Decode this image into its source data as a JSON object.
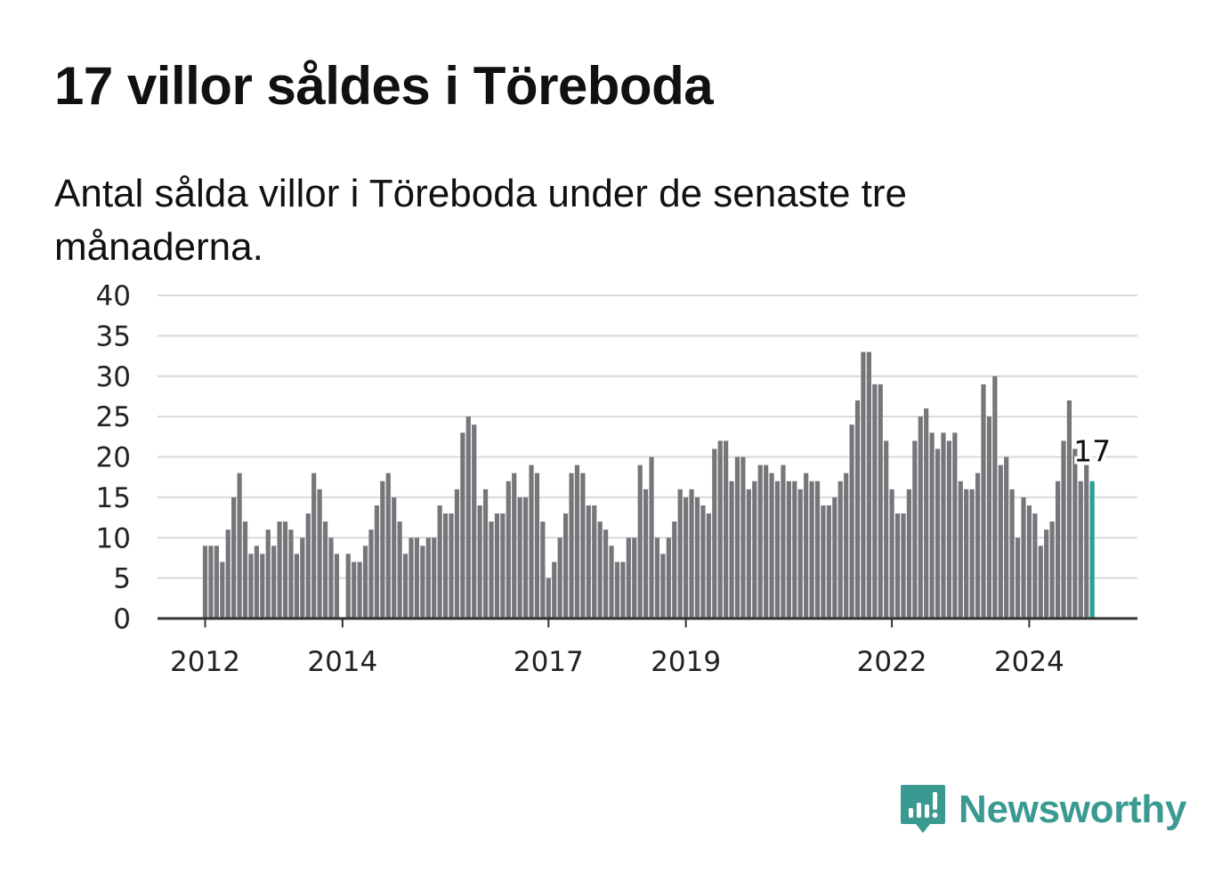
{
  "title": "17 villor såldes i Töreboda",
  "subtitle": "Antal sålda villor i Töreboda under de senaste tre månaderna.",
  "brand": {
    "name": "Newsworthy",
    "icon": "newsworthy-logo-icon",
    "color": "#3a9a91"
  },
  "colors": {
    "bar": "#76757a",
    "highlight": "#2a9d95",
    "grid": "#d9d9d9",
    "axis": "#333333"
  },
  "chart_data": {
    "type": "bar",
    "title": "17 villor såldes i Töreboda",
    "ylim": [
      0,
      40
    ],
    "yticks": [
      0,
      5,
      10,
      15,
      20,
      25,
      30,
      35,
      40
    ],
    "grid": true,
    "xticks": [
      {
        "label": "2012",
        "index": 0
      },
      {
        "label": "2014",
        "index": 24
      },
      {
        "label": "2017",
        "index": 60
      },
      {
        "label": "2019",
        "index": 84
      },
      {
        "label": "2022",
        "index": 120
      },
      {
        "label": "2024",
        "index": 144
      }
    ],
    "start": "2012-01",
    "frequency": "monthly",
    "values": [
      9,
      9,
      9,
      7,
      11,
      15,
      18,
      12,
      8,
      9,
      8,
      11,
      9,
      12,
      12,
      11,
      8,
      10,
      13,
      18,
      16,
      12,
      10,
      8,
      null,
      8,
      7,
      7,
      9,
      11,
      14,
      17,
      18,
      15,
      12,
      8,
      10,
      10,
      9,
      10,
      10,
      14,
      13,
      13,
      16,
      23,
      25,
      24,
      14,
      16,
      12,
      13,
      13,
      17,
      18,
      15,
      15,
      19,
      18,
      12,
      5,
      7,
      10,
      13,
      18,
      19,
      18,
      14,
      14,
      12,
      11,
      9,
      7,
      7,
      10,
      10,
      19,
      16,
      20,
      10,
      8,
      10,
      12,
      16,
      15,
      16,
      15,
      14,
      13,
      21,
      22,
      22,
      17,
      20,
      20,
      16,
      17,
      19,
      19,
      18,
      17,
      19,
      17,
      17,
      16,
      18,
      17,
      17,
      14,
      14,
      15,
      17,
      18,
      24,
      27,
      33,
      33,
      29,
      29,
      22,
      16,
      13,
      13,
      16,
      22,
      25,
      26,
      23,
      21,
      23,
      22,
      23,
      17,
      16,
      16,
      18,
      29,
      25,
      30,
      19,
      20,
      16,
      10,
      15,
      14,
      13,
      9,
      11,
      12,
      17,
      22,
      27,
      21,
      17,
      19,
      17
    ],
    "highlight_last": true,
    "value_label": "17"
  }
}
